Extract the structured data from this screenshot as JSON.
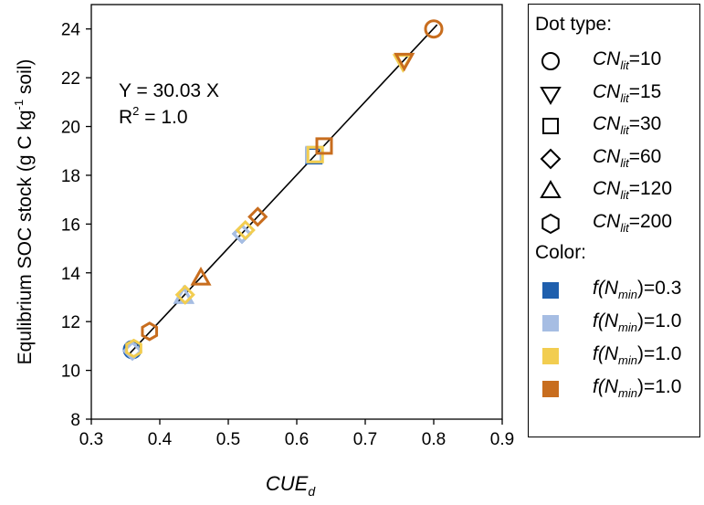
{
  "chart_data": {
    "type": "scatter",
    "xlabel": {
      "base": "CUE",
      "sub": "d"
    },
    "ylabel": {
      "pre": "Equlibrium SOC stock (g C kg",
      "sup": "-1",
      "post": " soil)"
    },
    "xlim": [
      0.3,
      0.9
    ],
    "ylim": [
      8,
      25
    ],
    "xticks": [
      "0.3",
      "0.4",
      "0.5",
      "0.6",
      "0.7",
      "0.8",
      "0.9"
    ],
    "yticks": [
      "8",
      "10",
      "12",
      "14",
      "16",
      "18",
      "20",
      "22",
      "24"
    ],
    "xtick_values": [
      0.3,
      0.4,
      0.5,
      0.6,
      0.7,
      0.8,
      0.9
    ],
    "ytick_values": [
      8,
      10,
      12,
      14,
      16,
      18,
      20,
      22,
      24
    ],
    "fit": {
      "slope": 30.03,
      "x_range": [
        0.355,
        0.805
      ],
      "color": "#000000"
    },
    "annotation": {
      "equation": "Y = 30.03 X",
      "r2_prefix": "R",
      "r2_sup": "2",
      "r2_suffix": " = 1.0"
    },
    "points": [
      {
        "x": 0.36,
        "y": 10.85,
        "marker": "circle",
        "color": "#1f5fad"
      },
      {
        "x": 0.36,
        "y": 10.8,
        "marker": "diamond",
        "color": "#a6bde3"
      },
      {
        "x": 0.362,
        "y": 10.9,
        "marker": "hexagon",
        "color": "#f2cd50"
      },
      {
        "x": 0.385,
        "y": 11.6,
        "marker": "hexagon",
        "color": "#c86d1e"
      },
      {
        "x": 0.435,
        "y": 13.05,
        "marker": "triangle",
        "color": "#1f5fad"
      },
      {
        "x": 0.435,
        "y": 13.05,
        "marker": "triangle",
        "color": "#a6bde3"
      },
      {
        "x": 0.437,
        "y": 13.1,
        "marker": "diamond",
        "color": "#f2cd50"
      },
      {
        "x": 0.46,
        "y": 13.8,
        "marker": "triangle",
        "color": "#c86d1e"
      },
      {
        "x": 0.52,
        "y": 15.6,
        "marker": "diamond",
        "color": "#1f5fad"
      },
      {
        "x": 0.52,
        "y": 15.6,
        "marker": "diamond",
        "color": "#a6bde3"
      },
      {
        "x": 0.525,
        "y": 15.75,
        "marker": "diamond",
        "color": "#f2cd50"
      },
      {
        "x": 0.543,
        "y": 16.3,
        "marker": "diamond",
        "color": "#c86d1e"
      },
      {
        "x": 0.625,
        "y": 18.8,
        "marker": "square",
        "color": "#1f5fad"
      },
      {
        "x": 0.625,
        "y": 18.85,
        "marker": "square",
        "color": "#a6bde3"
      },
      {
        "x": 0.627,
        "y": 18.85,
        "marker": "square",
        "color": "#f2cd50"
      },
      {
        "x": 0.64,
        "y": 19.2,
        "marker": "square",
        "color": "#c86d1e"
      },
      {
        "x": 0.755,
        "y": 22.65,
        "marker": "triangle-down",
        "color": "#f2cd50"
      },
      {
        "x": 0.757,
        "y": 22.7,
        "marker": "triangle-down",
        "color": "#c86d1e"
      },
      {
        "x": 0.8,
        "y": 24.0,
        "marker": "circle",
        "color": "#c86d1e"
      }
    ]
  },
  "legend": {
    "dot_heading": "Dot type:",
    "dot_types": [
      {
        "marker": "circle",
        "base": "CN",
        "sub": "lit",
        "value": "=10"
      },
      {
        "marker": "triangle-down",
        "base": "CN",
        "sub": "lit",
        "value": "=15"
      },
      {
        "marker": "square",
        "base": "CN",
        "sub": "lit",
        "value": "=30"
      },
      {
        "marker": "diamond",
        "base": "CN",
        "sub": "lit",
        "value": "=60"
      },
      {
        "marker": "triangle",
        "base": "CN",
        "sub": "lit",
        "value": "=120"
      },
      {
        "marker": "hexagon",
        "base": "CN",
        "sub": "lit",
        "value": "=200"
      }
    ],
    "color_heading": "Color:",
    "colors": [
      {
        "color": "#1f5fad",
        "pre": "f(",
        "base": "N",
        "sub": "min",
        "post": ")=0.3"
      },
      {
        "color": "#a6bde3",
        "pre": "f(",
        "base": "N",
        "sub": "min",
        "post": ")=1.0"
      },
      {
        "color": "#f2cd50",
        "pre": "f(",
        "base": "N",
        "sub": "min",
        "post": ")=1.0"
      },
      {
        "color": "#c86d1e",
        "pre": "f(",
        "base": "N",
        "sub": "min",
        "post": ")=1.0"
      }
    ]
  }
}
